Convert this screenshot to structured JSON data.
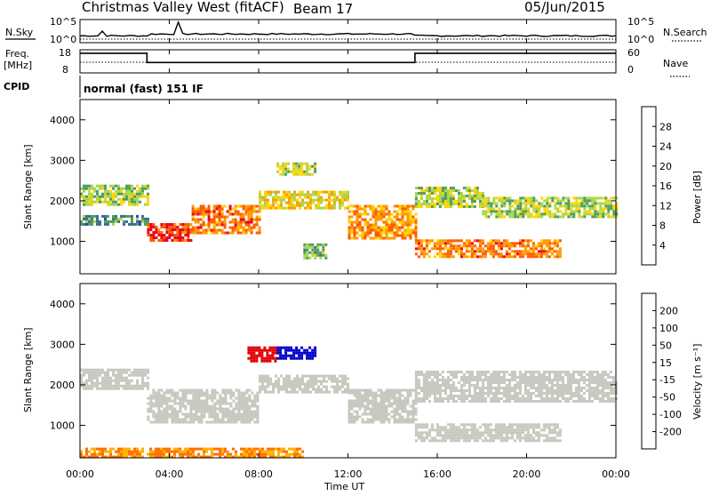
{
  "header": {
    "station": "Christmas Valley West (fitACF)",
    "beam": "Beam 17",
    "date": "05/Jun/2015"
  },
  "panels": {
    "nsky": {
      "label": "N.Sky",
      "right_label": "N.Search",
      "yticks_left": [
        "10^5",
        "10^0"
      ],
      "yticks_right": [
        "10^5",
        "10^0"
      ]
    },
    "freq": {
      "label_line1": "Freq.",
      "label_line2": "[MHz]",
      "right_label": "Nave",
      "yticks_left": [
        "18",
        "8"
      ],
      "yticks_right": [
        "60",
        "0"
      ],
      "cpid_label": "CPID",
      "cpid_text": "normal (fast) 151 IF"
    },
    "power": {
      "ylabel": "Slant Range [km]",
      "colorbar_label": "Power [dB]",
      "colorbar_ticks": [
        "28",
        "24",
        "20",
        "16",
        "12",
        "8",
        "4"
      ],
      "colors": [
        "#e8001e",
        "#ff5a00",
        "#ff9a00",
        "#ffd400",
        "#a8d64a",
        "#4e9e5e",
        "#3a6e8c",
        "#2b3fd0",
        "#0000ff"
      ]
    },
    "velocity": {
      "ylabel": "Slant Range [km]",
      "colorbar_label": "Velocity [m s⁻¹]",
      "colorbar_ticks": [
        "200",
        "100",
        "50",
        "15",
        "-15",
        "-50",
        "-100",
        "-200"
      ],
      "colors": [
        "#0000cc",
        "#1a6b40",
        "#3aa02e",
        "#8fd13f",
        "#c8c8c0",
        "#ffb000",
        "#ff7000",
        "#ff3000",
        "#e00000"
      ]
    }
  },
  "time_axis": {
    "label": "Time UT",
    "ticks": [
      "00:00",
      "04:00",
      "08:00",
      "12:00",
      "16:00",
      "20:00",
      "00:00"
    ]
  },
  "chart_data": {
    "type": "heatmap",
    "title": "Christmas Valley West (fitACF) Beam 17 05/Jun/2015",
    "xlabel": "Time UT",
    "ylabel": "Slant Range [km]",
    "xlim_hours": [
      0,
      24
    ],
    "ylim_km": [
      200,
      4500
    ],
    "yticks": [
      1000,
      2000,
      3000,
      4000
    ],
    "frequency_segments": [
      {
        "from_h": 0,
        "to_h": 3,
        "mhz": 16.5
      },
      {
        "from_h": 3,
        "to_h": 15,
        "mhz": 12.5
      },
      {
        "from_h": 15,
        "to_h": 24,
        "mhz": 16.5
      }
    ],
    "power_bands": [
      {
        "from_h": 0.0,
        "to_h": 3.0,
        "km_lo": 1900,
        "km_hi": 2400,
        "db": 14
      },
      {
        "from_h": 0.0,
        "to_h": 3.0,
        "km_lo": 1450,
        "km_hi": 1650,
        "db": 8
      },
      {
        "from_h": 3.0,
        "to_h": 5.0,
        "km_lo": 1050,
        "km_hi": 1450,
        "db": 28
      },
      {
        "from_h": 5.0,
        "to_h": 8.0,
        "km_lo": 1200,
        "km_hi": 1900,
        "db": 24
      },
      {
        "from_h": 8.0,
        "to_h": 12.0,
        "km_lo": 1800,
        "km_hi": 2250,
        "db": 18
      },
      {
        "from_h": 12.0,
        "to_h": 15.0,
        "km_lo": 1100,
        "km_hi": 1900,
        "db": 22
      },
      {
        "from_h": 8.8,
        "to_h": 10.5,
        "km_lo": 2650,
        "km_hi": 2950,
        "db": 16
      },
      {
        "from_h": 15.0,
        "to_h": 18.0,
        "km_lo": 1850,
        "km_hi": 2350,
        "db": 14
      },
      {
        "from_h": 18.0,
        "to_h": 24.0,
        "km_lo": 1600,
        "km_hi": 2100,
        "db": 14
      },
      {
        "from_h": 15.0,
        "to_h": 21.5,
        "km_lo": 600,
        "km_hi": 1050,
        "db": 24
      },
      {
        "from_h": 10.0,
        "to_h": 11.0,
        "km_lo": 600,
        "km_hi": 950,
        "db": 12
      }
    ],
    "velocity_bands": [
      {
        "from_h": 0.0,
        "to_h": 3.0,
        "km_lo": 1900,
        "km_hi": 2400,
        "v": 0
      },
      {
        "from_h": 3.0,
        "to_h": 8.0,
        "km_lo": 1050,
        "km_hi": 1900,
        "v": 0
      },
      {
        "from_h": 8.0,
        "to_h": 12.0,
        "km_lo": 1800,
        "km_hi": 2250,
        "v": 0
      },
      {
        "from_h": 12.0,
        "to_h": 15.0,
        "km_lo": 1100,
        "km_hi": 1900,
        "v": 0
      },
      {
        "from_h": 8.8,
        "to_h": 10.5,
        "km_lo": 2650,
        "km_hi": 2950,
        "v": 200
      },
      {
        "from_h": 7.5,
        "to_h": 8.8,
        "km_lo": 2600,
        "km_hi": 2950,
        "v": -200
      },
      {
        "from_h": 15.0,
        "to_h": 24.0,
        "km_lo": 1600,
        "km_hi": 2350,
        "v": 0
      },
      {
        "from_h": 15.0,
        "to_h": 21.5,
        "km_lo": 600,
        "km_hi": 1050,
        "v": 0
      },
      {
        "from_h": 0.0,
        "to_h": 10.0,
        "km_lo": 250,
        "km_hi": 450,
        "v": -50
      }
    ]
  }
}
